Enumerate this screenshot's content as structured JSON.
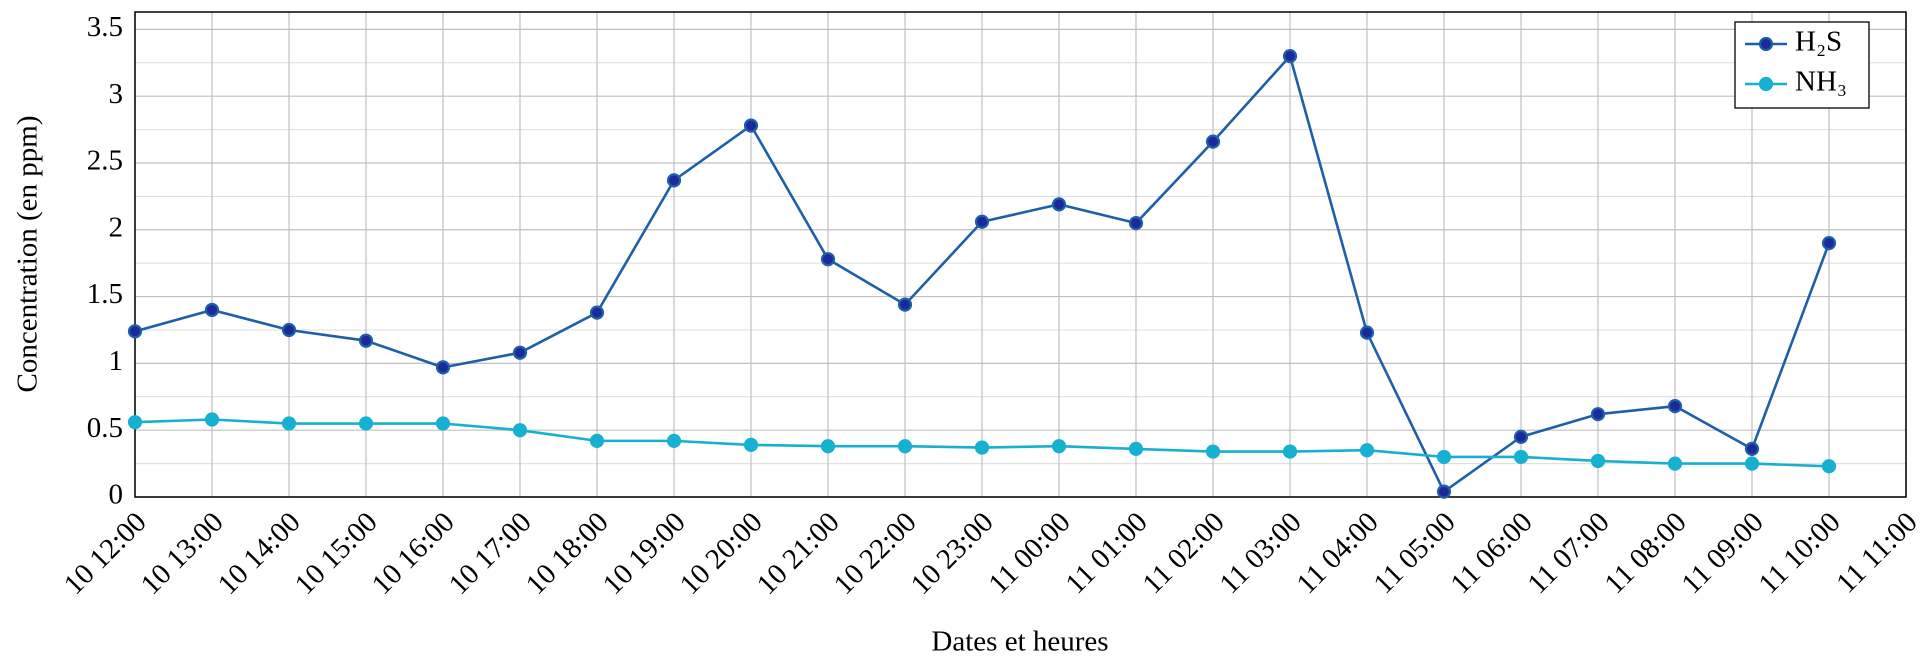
{
  "chart_data": {
    "type": "line",
    "x_label": "Dates et heures",
    "y_label": "Concentration (en ppm)",
    "categories": [
      "10 12:00",
      "10 13:00",
      "10 14:00",
      "10 15:00",
      "10 16:00",
      "10 17:00",
      "10 18:00",
      "10 19:00",
      "10 20:00",
      "10 21:00",
      "10 22:00",
      "10 23:00",
      "11 00:00",
      "11 01:00",
      "11 02:00",
      "11 03:00",
      "11 04:00",
      "11 05:00",
      "11 06:00",
      "11 07:00",
      "11 08:00",
      "11 09:00",
      "11 10:00",
      "11 11:00"
    ],
    "series": [
      {
        "name": "H₂S",
        "color": "#1f5fa8",
        "marker_color": "#1a2a9a",
        "values": [
          1.24,
          1.4,
          1.25,
          1.17,
          0.97,
          1.08,
          1.38,
          2.37,
          2.78,
          1.78,
          1.44,
          2.06,
          2.19,
          2.05,
          2.66,
          3.3,
          1.23,
          0.04,
          0.45,
          0.62,
          0.68,
          0.36,
          1.9,
          null
        ]
      },
      {
        "name": "NH₃",
        "color": "#17b0d0",
        "marker_color": "#17b0d0",
        "values": [
          0.56,
          0.58,
          0.55,
          0.55,
          0.55,
          0.5,
          0.42,
          0.42,
          0.39,
          0.38,
          0.38,
          0.37,
          0.38,
          0.36,
          0.34,
          0.34,
          0.35,
          0.3,
          0.3,
          0.27,
          0.25,
          0.25,
          0.23,
          null
        ]
      }
    ],
    "ylim": [
      0,
      3.63
    ],
    "yticks": [
      0,
      0.5,
      1,
      1.5,
      2,
      2.5,
      3,
      3.5
    ],
    "grid": true,
    "legend": "upper right"
  }
}
